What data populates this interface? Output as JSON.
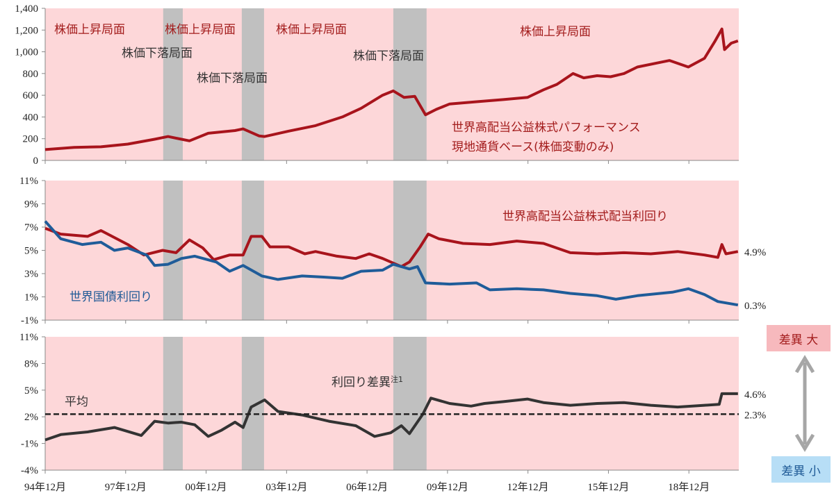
{
  "chart_data": [
    {
      "type": "line",
      "panel": "top",
      "title": "",
      "ylabel": "",
      "ylim": [
        0,
        1400
      ],
      "yticks": [
        0,
        200,
        400,
        600,
        800,
        1000,
        1200,
        1400
      ],
      "ytick_labels": [
        "0",
        "200",
        "400",
        "600",
        "800",
        "1,000",
        "1,200",
        "1,400"
      ],
      "series": [
        {
          "name": "世界高配当公益株式パフォーマンス 現地通貨ベース(株価変動のみ)",
          "color": "#a8141c",
          "points": [
            [
              1994.92,
              100
            ],
            [
              1996,
              120
            ],
            [
              1997,
              125
            ],
            [
              1998,
              150
            ],
            [
              1999,
              195
            ],
            [
              1999.5,
              220
            ],
            [
              2000,
              195
            ],
            [
              2000.3,
              180
            ],
            [
              2001,
              250
            ],
            [
              2002,
              275
            ],
            [
              2002.3,
              290
            ],
            [
              2002.9,
              225
            ],
            [
              2003.1,
              220
            ],
            [
              2004,
              270
            ],
            [
              2005,
              320
            ],
            [
              2006,
              400
            ],
            [
              2006.7,
              480
            ],
            [
              2007.5,
              600
            ],
            [
              2007.9,
              640
            ],
            [
              2008.3,
              580
            ],
            [
              2008.7,
              590
            ],
            [
              2009.1,
              420
            ],
            [
              2009.5,
              470
            ],
            [
              2010,
              520
            ],
            [
              2011,
              540
            ],
            [
              2012,
              560
            ],
            [
              2012.9,
              580
            ],
            [
              2013.5,
              650
            ],
            [
              2014,
              700
            ],
            [
              2014.6,
              800
            ],
            [
              2015,
              760
            ],
            [
              2015.5,
              780
            ],
            [
              2016,
              770
            ],
            [
              2016.5,
              800
            ],
            [
              2017,
              860
            ],
            [
              2017.8,
              900
            ],
            [
              2018.2,
              920
            ],
            [
              2018.9,
              860
            ],
            [
              2019.5,
              940
            ],
            [
              2019.9,
              1100
            ],
            [
              2020.15,
              1210
            ],
            [
              2020.25,
              1020
            ],
            [
              2020.5,
              1080
            ],
            [
              2020.75,
              1100
            ]
          ]
        }
      ],
      "annotations": [
        "株価上昇局面",
        "株価上昇局面",
        "株価上昇局面",
        "株価上昇局面",
        "株価下落局面",
        "株価下落局面",
        "株価下落局面",
        "世界高配当公益株式パフォーマンス",
        "現地通貨ベース(株価変動のみ)"
      ]
    },
    {
      "type": "line",
      "panel": "middle",
      "ylim": [
        -1,
        11
      ],
      "yticks": [
        -1,
        1,
        3,
        5,
        7,
        9,
        11
      ],
      "ytick_labels": [
        "-1%",
        "1%",
        "3%",
        "5%",
        "7%",
        "9%",
        "11%"
      ],
      "series": [
        {
          "name": "世界高配当公益株式配当利回り",
          "color": "#a8141c",
          "end_label": "4.9%",
          "points": [
            [
              1994.92,
              6.9
            ],
            [
              1995.5,
              6.4
            ],
            [
              1996.5,
              6.2
            ],
            [
              1997,
              6.7
            ],
            [
              1998,
              5.5
            ],
            [
              1998.6,
              4.6
            ],
            [
              1999.3,
              5.0
            ],
            [
              1999.8,
              4.8
            ],
            [
              2000.3,
              5.9
            ],
            [
              2000.8,
              5.2
            ],
            [
              2001.2,
              4.2
            ],
            [
              2001.8,
              4.6
            ],
            [
              2002.3,
              4.6
            ],
            [
              2002.6,
              6.2
            ],
            [
              2003,
              6.2
            ],
            [
              2003.3,
              5.3
            ],
            [
              2004,
              5.3
            ],
            [
              2004.6,
              4.7
            ],
            [
              2005,
              4.9
            ],
            [
              2005.8,
              4.5
            ],
            [
              2006.5,
              4.3
            ],
            [
              2007,
              4.7
            ],
            [
              2007.5,
              4.3
            ],
            [
              2008.2,
              3.6
            ],
            [
              2008.5,
              4.0
            ],
            [
              2008.9,
              5.3
            ],
            [
              2009.2,
              6.4
            ],
            [
              2009.6,
              6.0
            ],
            [
              2010.5,
              5.6
            ],
            [
              2011.5,
              5.5
            ],
            [
              2012.5,
              5.8
            ],
            [
              2013.5,
              5.6
            ],
            [
              2014.5,
              4.8
            ],
            [
              2015.5,
              4.7
            ],
            [
              2016.5,
              4.8
            ],
            [
              2017.5,
              4.7
            ],
            [
              2018.5,
              4.9
            ],
            [
              2019.5,
              4.6
            ],
            [
              2020,
              4.4
            ],
            [
              2020.15,
              5.5
            ],
            [
              2020.3,
              4.7
            ],
            [
              2020.75,
              4.9
            ]
          ]
        },
        {
          "name": "世界国債利回り",
          "color": "#1f5c99",
          "end_label": "0.3%",
          "points": [
            [
              1994.92,
              7.5
            ],
            [
              1995.5,
              6.0
            ],
            [
              1996.3,
              5.5
            ],
            [
              1997,
              5.7
            ],
            [
              1997.5,
              5.0
            ],
            [
              1998,
              5.2
            ],
            [
              1998.7,
              4.6
            ],
            [
              1999,
              3.7
            ],
            [
              1999.5,
              3.8
            ],
            [
              2000,
              4.3
            ],
            [
              2000.5,
              4.5
            ],
            [
              2001.3,
              4.0
            ],
            [
              2001.8,
              3.2
            ],
            [
              2002.3,
              3.7
            ],
            [
              2003,
              2.8
            ],
            [
              2003.6,
              2.5
            ],
            [
              2004.5,
              2.8
            ],
            [
              2005.3,
              2.7
            ],
            [
              2006,
              2.6
            ],
            [
              2006.7,
              3.2
            ],
            [
              2007.5,
              3.3
            ],
            [
              2007.9,
              3.8
            ],
            [
              2008.5,
              3.4
            ],
            [
              2008.8,
              3.6
            ],
            [
              2009.1,
              2.2
            ],
            [
              2010,
              2.1
            ],
            [
              2011,
              2.2
            ],
            [
              2011.5,
              1.6
            ],
            [
              2012.5,
              1.7
            ],
            [
              2013.5,
              1.6
            ],
            [
              2014.5,
              1.3
            ],
            [
              2015.5,
              1.1
            ],
            [
              2016.2,
              0.8
            ],
            [
              2017,
              1.1
            ],
            [
              2018.3,
              1.4
            ],
            [
              2018.9,
              1.7
            ],
            [
              2019.5,
              1.2
            ],
            [
              2020,
              0.6
            ],
            [
              2020.75,
              0.3
            ]
          ]
        }
      ]
    },
    {
      "type": "line",
      "panel": "bottom",
      "ylim": [
        -4,
        11
      ],
      "yticks": [
        -4,
        -1,
        2,
        5,
        8,
        11
      ],
      "ytick_labels": [
        "-4%",
        "-1%",
        "2%",
        "5%",
        "8%",
        "11%"
      ],
      "series": [
        {
          "name": "利回り差異",
          "note": "注1",
          "color": "#333333",
          "end_label": "4.6%",
          "points": [
            [
              1994.92,
              -0.6
            ],
            [
              1995.5,
              0
            ],
            [
              1996.5,
              0.3
            ],
            [
              1997.5,
              0.8
            ],
            [
              1998.5,
              -0.1
            ],
            [
              1999,
              1.5
            ],
            [
              1999.5,
              1.3
            ],
            [
              2000,
              1.4
            ],
            [
              2000.5,
              1.1
            ],
            [
              2001,
              -0.2
            ],
            [
              2001.5,
              0.5
            ],
            [
              2002,
              1.4
            ],
            [
              2002.3,
              0.8
            ],
            [
              2002.6,
              3.1
            ],
            [
              2003.1,
              3.9
            ],
            [
              2003.6,
              2.6
            ],
            [
              2004.5,
              2.2
            ],
            [
              2005.5,
              1.5
            ],
            [
              2006.5,
              1.0
            ],
            [
              2007.2,
              -0.2
            ],
            [
              2007.8,
              0.2
            ],
            [
              2008.2,
              1.0
            ],
            [
              2008.5,
              0.1
            ],
            [
              2009,
              2.3
            ],
            [
              2009.3,
              4.1
            ],
            [
              2010,
              3.5
            ],
            [
              2010.8,
              3.2
            ],
            [
              2011.3,
              3.5
            ],
            [
              2012,
              3.7
            ],
            [
              2012.9,
              4.0
            ],
            [
              2013.5,
              3.6
            ],
            [
              2014.5,
              3.3
            ],
            [
              2015.5,
              3.5
            ],
            [
              2016.5,
              3.6
            ],
            [
              2017.5,
              3.3
            ],
            [
              2018.5,
              3.1
            ],
            [
              2019.5,
              3.3
            ],
            [
              2020.05,
              3.4
            ],
            [
              2020.15,
              4.6
            ],
            [
              2020.75,
              4.6
            ]
          ]
        },
        {
          "name": "平均",
          "type": "hline",
          "value": 2.3,
          "end_label": "2.3%",
          "color": "#222222"
        }
      ]
    }
  ],
  "x_axis": {
    "range": [
      1994.92,
      2020.78
    ],
    "ticks": [
      1994.92,
      1997.92,
      2000.92,
      2003.92,
      2006.92,
      2009.92,
      2012.92,
      2015.92,
      2018.92
    ],
    "tick_labels": [
      "94年12月",
      "97年12月",
      "00年12月",
      "03年12月",
      "06年12月",
      "09年12月",
      "12年12月",
      "15年12月",
      "18年12月"
    ]
  },
  "decline_periods": [
    [
      1999.32,
      2000.05
    ],
    [
      2002.25,
      2003.08
    ],
    [
      2007.9,
      2009.14
    ]
  ],
  "colors": {
    "background": "#fdd7d9",
    "decline": "#c0c0c0",
    "red_text": "#a31c1c",
    "dark_text": "#333333",
    "blue_text": "#1f5a96",
    "arrow": "#a6a6a6"
  },
  "side_legend": {
    "large": "差異 大",
    "small": "差異 小"
  }
}
